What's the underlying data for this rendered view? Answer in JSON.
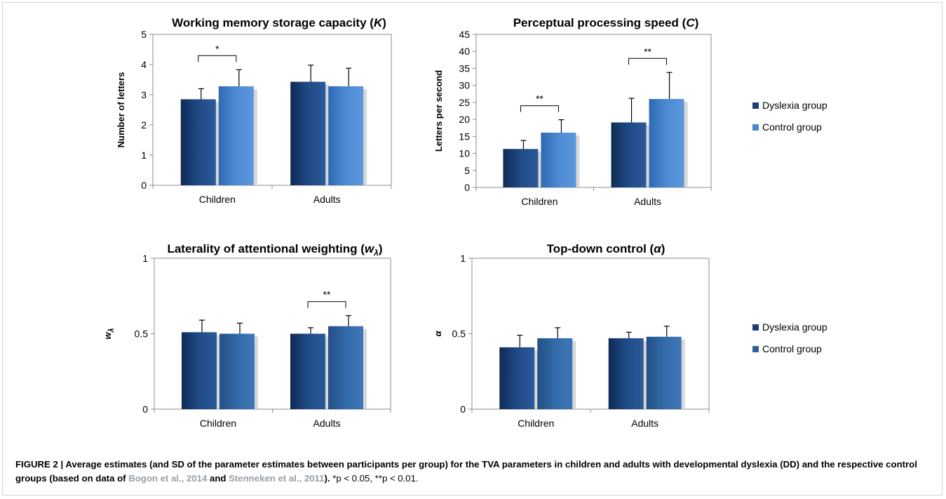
{
  "chart_data": [
    {
      "type": "bar",
      "title": "Working memory storage capacity",
      "title_symbol": "K",
      "ylabel": "Number of letters",
      "ylim": [
        0,
        5
      ],
      "yticks": [
        "0",
        "1",
        "2",
        "3",
        "4",
        "5"
      ],
      "categories": [
        "Children",
        "Adults"
      ],
      "series": [
        {
          "name": "Dyslexia group",
          "values": [
            2.85,
            3.43
          ],
          "sd": [
            0.35,
            0.55
          ]
        },
        {
          "name": "Control group",
          "values": [
            3.28,
            3.28
          ],
          "sd": [
            0.55,
            0.6
          ]
        }
      ],
      "significance": [
        {
          "category": "Children",
          "label": "*"
        }
      ],
      "legend": false
    },
    {
      "type": "bar",
      "title": "Perceptual processing speed",
      "title_symbol": "C",
      "ylabel": "Letters per second",
      "ylim": [
        0,
        45
      ],
      "yticks": [
        "0",
        "5",
        "10",
        "15",
        "20",
        "25",
        "30",
        "35",
        "40",
        "45"
      ],
      "categories": [
        "Children",
        "Adults"
      ],
      "series": [
        {
          "name": "Dyslexia group",
          "values": [
            11.3,
            19.1
          ],
          "sd": [
            2.5,
            7.1
          ]
        },
        {
          "name": "Control group",
          "values": [
            16.1,
            26
          ],
          "sd": [
            3.8,
            7.8
          ]
        }
      ],
      "significance": [
        {
          "category": "Children",
          "label": "**"
        },
        {
          "category": "Adults",
          "label": "**"
        }
      ],
      "legend": true
    },
    {
      "type": "bar",
      "title": "Laterality of attentional weighting",
      "title_symbol": "w",
      "title_subscript": "λ",
      "ylabel": "w",
      "ylabel_subscript": "λ",
      "ylim": [
        0,
        1
      ],
      "yticks": [
        "0",
        "0.5",
        "1"
      ],
      "categories": [
        "Children",
        "Adults"
      ],
      "series": [
        {
          "name": "Dyslexia group",
          "values": [
            0.51,
            0.5
          ],
          "sd": [
            0.08,
            0.04
          ]
        },
        {
          "name": "Control group",
          "values": [
            0.5,
            0.55
          ],
          "sd": [
            0.07,
            0.07
          ]
        }
      ],
      "significance": [
        {
          "category": "Adults",
          "label": "**"
        }
      ],
      "legend": false
    },
    {
      "type": "bar",
      "title": "Top-down control",
      "title_symbol": "α",
      "ylabel": "α",
      "ylim": [
        0,
        1
      ],
      "yticks": [
        "0",
        "0.5",
        "1"
      ],
      "categories": [
        "Children",
        "Adults"
      ],
      "series": [
        {
          "name": "Dyslexia group",
          "values": [
            0.41,
            0.47
          ],
          "sd": [
            0.08,
            0.04
          ]
        },
        {
          "name": "Control group",
          "values": [
            0.47,
            0.48
          ],
          "sd": [
            0.07,
            0.07
          ]
        }
      ],
      "significance": [],
      "legend": true
    }
  ],
  "colors": {
    "top_dyslexia": "#1b3f73",
    "top_control": "#4a86cf",
    "bottom_dyslexia": "#1b3f73",
    "bottom_control": "#2f5f9a"
  },
  "caption": {
    "lead": "FIGURE 2 | Average estimates (and SD of the parameter estimates between participants per group) for the TVA parameters in children and adults with developmental dyslexia (DD) and the respective control groups (based on data of ",
    "ref1": "Bogon et al., 2014",
    "mid": " and ",
    "ref2": "Stenneken et al., 2011",
    "end": "). ",
    "pvalues": "*p < 0.05, **p < 0.01."
  }
}
